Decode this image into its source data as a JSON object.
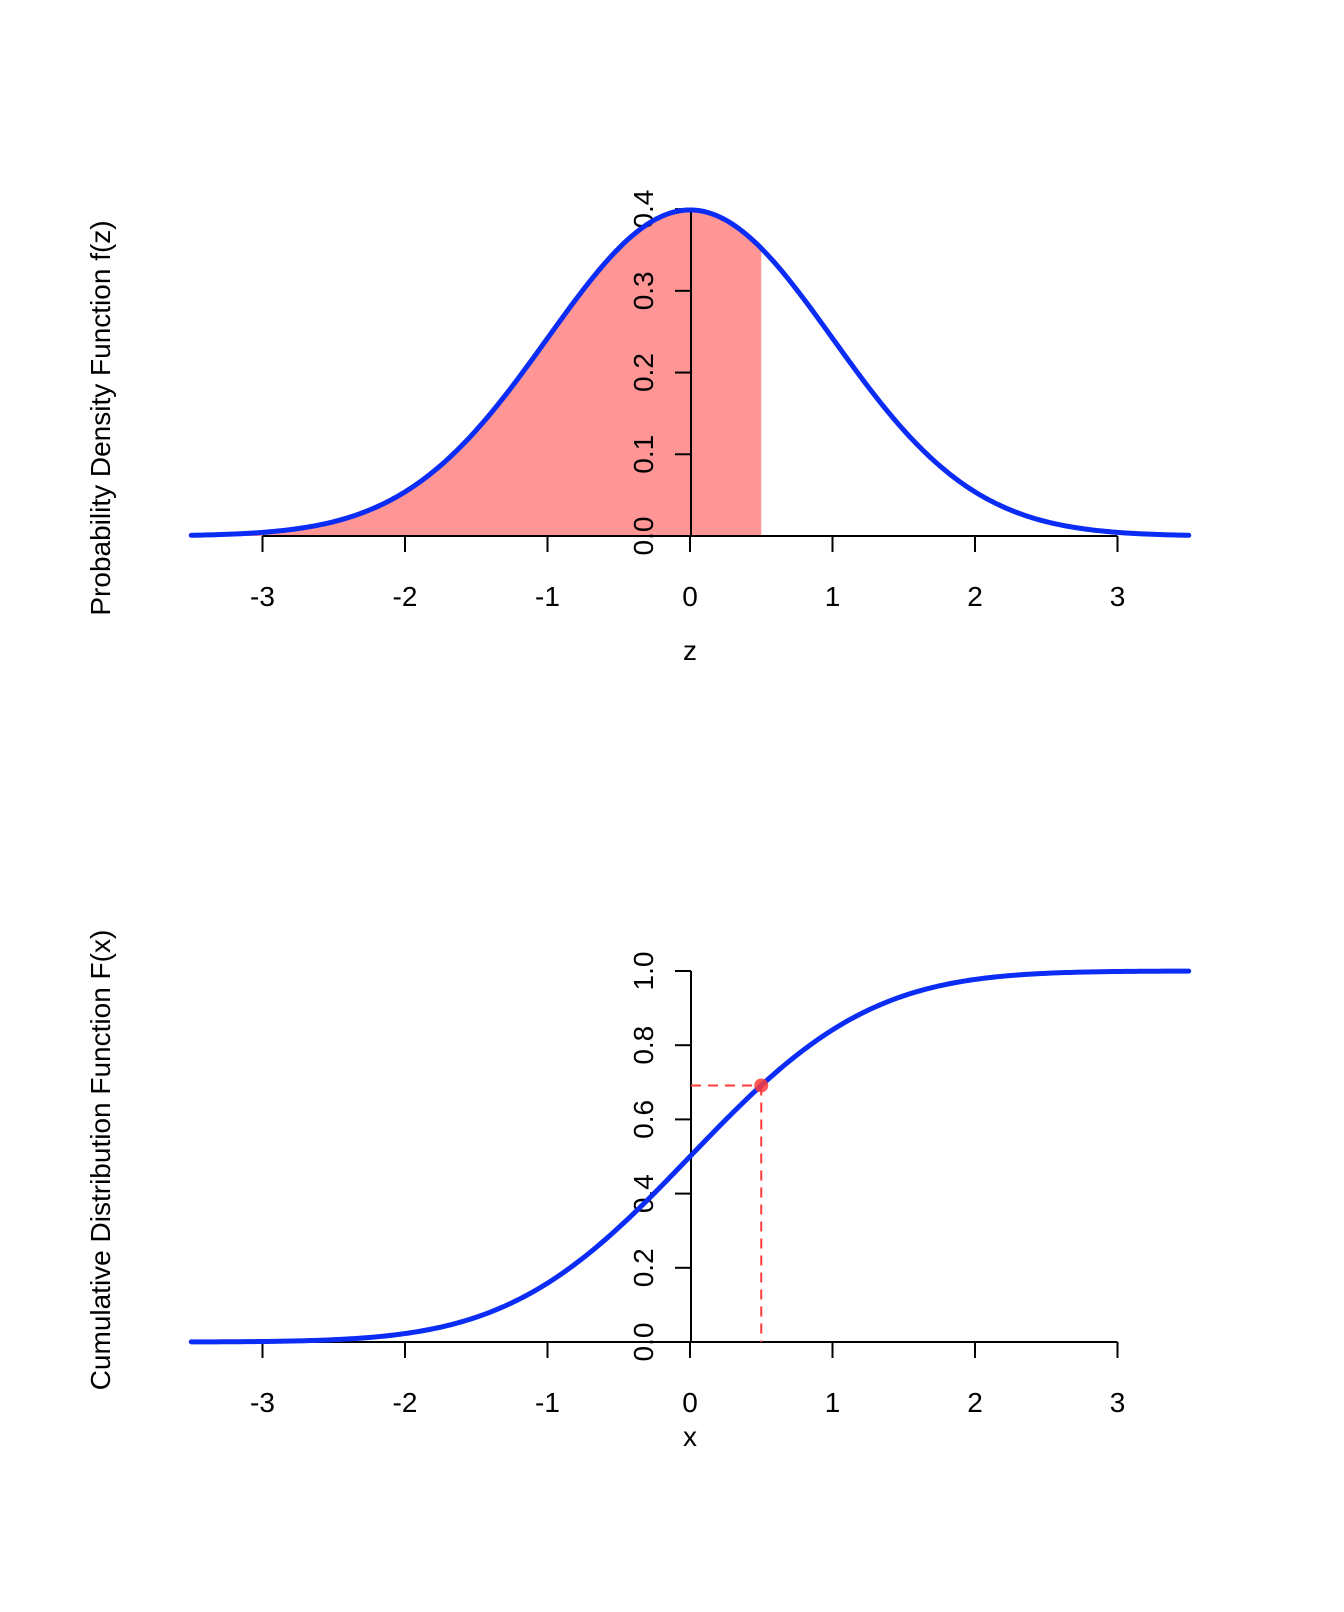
{
  "colors": {
    "curve": "#0a2cf5",
    "shade": "#ff9595",
    "marker": "#ff3b3b",
    "axis": "#000000"
  },
  "chart_data": [
    {
      "id": "pdf",
      "type": "area",
      "function": "standard-normal-pdf",
      "x_range": [
        -3.5,
        3.5
      ],
      "ylim": [
        0,
        0.4
      ],
      "xlabel": "z",
      "ylabel": "Probability Density Function f(z)",
      "xticks": [
        -3,
        -2,
        -1,
        0,
        1,
        2,
        3
      ],
      "xtick_labels": [
        "-3",
        "-2",
        "-1",
        "0",
        "1",
        "2",
        "3"
      ],
      "yticks": [
        0,
        0.1,
        0.2,
        0.3,
        0.4
      ],
      "ytick_labels": [
        "0.0",
        "0.1",
        "0.2",
        "0.3",
        "0.4"
      ],
      "shaded_region": {
        "from": -3.5,
        "to": 0.5
      },
      "series": [
        {
          "name": "f(z)",
          "color": "#0a2cf5"
        }
      ]
    },
    {
      "id": "cdf",
      "type": "line",
      "function": "standard-normal-cdf",
      "x_range": [
        -3.5,
        3.5
      ],
      "ylim": [
        0,
        1
      ],
      "xlabel": "x",
      "ylabel": "Cumulative Distribution Function F(x)",
      "xticks": [
        -3,
        -2,
        -1,
        0,
        1,
        2,
        3
      ],
      "xtick_labels": [
        "-3",
        "-2",
        "-1",
        "0",
        "1",
        "2",
        "3"
      ],
      "yticks": [
        0,
        0.2,
        0.4,
        0.6,
        0.8,
        1.0
      ],
      "ytick_labels": [
        "0.0",
        "0.2",
        "0.4",
        "0.6",
        "0.8",
        "1.0"
      ],
      "highlight_point": {
        "x": 0.5,
        "y": 0.6915
      },
      "series": [
        {
          "name": "F(x)",
          "color": "#0a2cf5"
        }
      ]
    }
  ]
}
